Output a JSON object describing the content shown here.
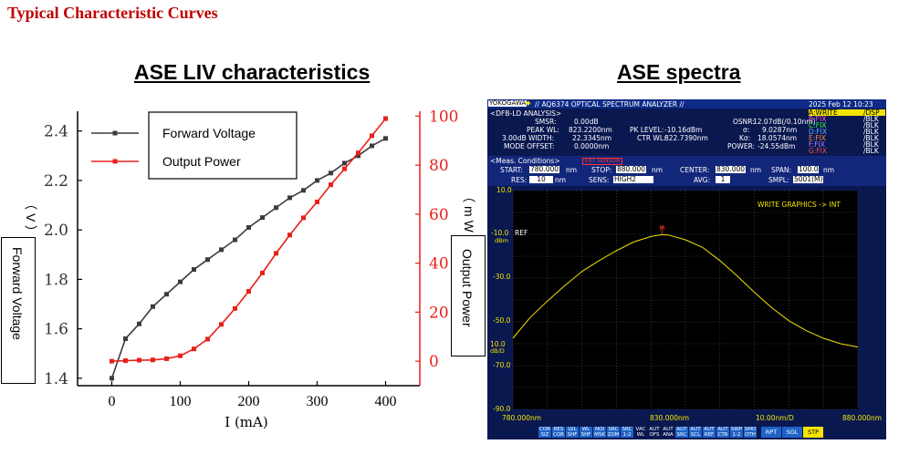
{
  "heading": "Typical Characteristic Curves",
  "liv": {
    "title": "ASE LIV characteristics",
    "left_axis_label": "Forward Voltage",
    "left_unit": "（V）",
    "right_axis_label": "Output Power",
    "right_unit": "（mW）",
    "xlabel": "I (mA)"
  },
  "chart_data": [
    {
      "type": "line",
      "title": "ASE LIV characteristics",
      "xlabel": "I (mA)",
      "ylabel": "Forward Voltage",
      "y2label": "Output Power",
      "xlim": [
        -50,
        450
      ],
      "ylim": [
        1.37,
        2.48
      ],
      "y2lim": [
        -10,
        102
      ],
      "xticks": [
        0,
        100,
        200,
        300,
        400
      ],
      "xtick_labels": [
        "0",
        "100",
        "200",
        "300",
        "400"
      ],
      "yticks": [
        1.4,
        1.6,
        1.8,
        2.0,
        2.2,
        2.4
      ],
      "ytick_labels": [
        "1.4",
        "1.6",
        "1.8",
        "2.0",
        "2.2",
        "2.4"
      ],
      "y2ticks": [
        0,
        20,
        40,
        60,
        80,
        100
      ],
      "y2tick_labels": [
        "0",
        "20",
        "40",
        "60",
        "80",
        "100"
      ],
      "legend_position": "top-left",
      "series": [
        {
          "name": "Forward Voltage",
          "axis": "left",
          "color": "#3c3c3c",
          "x": [
            0,
            20,
            40,
            60,
            80,
            100,
            120,
            140,
            160,
            180,
            200,
            220,
            240,
            260,
            280,
            300,
            320,
            340,
            360,
            380,
            400
          ],
          "y": [
            1.4,
            1.56,
            1.62,
            1.69,
            1.74,
            1.79,
            1.84,
            1.88,
            1.92,
            1.96,
            2.01,
            2.05,
            2.09,
            2.13,
            2.16,
            2.2,
            2.23,
            2.27,
            2.3,
            2.34,
            2.37
          ]
        },
        {
          "name": "Output Power",
          "axis": "right",
          "color": "#e8201a",
          "x": [
            0,
            20,
            40,
            60,
            80,
            100,
            120,
            140,
            160,
            180,
            200,
            220,
            240,
            260,
            280,
            300,
            320,
            340,
            360,
            380,
            400
          ],
          "y": [
            0,
            0.2,
            0.4,
            0.5,
            1.0,
            2.2,
            5.0,
            9.0,
            15.0,
            21.5,
            28.5,
            36.0,
            44.0,
            51.5,
            58.5,
            65.0,
            72.0,
            78.5,
            85.0,
            92.0,
            99.0
          ]
        }
      ]
    },
    {
      "type": "line",
      "title": "ASE spectra",
      "xlabel": "nm",
      "ylabel": "dBm",
      "xlim": [
        780.0,
        880.0
      ],
      "ylim": [
        -90.0,
        10.0
      ],
      "grid": true,
      "color": "#f2e400",
      "series": [
        {
          "x": [
            780,
            785,
            790,
            795,
            800,
            805,
            810,
            815,
            820,
            823.22,
            825,
            830,
            835,
            840,
            845,
            850,
            855,
            860,
            865,
            870,
            875,
            880
          ],
          "y": [
            -57.5,
            -48,
            -40.5,
            -33.5,
            -27,
            -22,
            -17.5,
            -13.5,
            -11,
            -10.16,
            -10.3,
            -12.5,
            -16,
            -22,
            -29,
            -36.5,
            -43.5,
            -49.5,
            -54,
            -57.5,
            -60,
            -61.5
          ]
        }
      ]
    }
  ],
  "osa": {
    "brand": "YOKOGAWA",
    "header_title": "// AQ6374 OPTICAL SPECTRUM ANALYZER //",
    "datetime": "2025 Feb 12 10:23",
    "analysis_label": "<DFB-LD ANALYSIS>",
    "smsr_label": "SMSR:",
    "smsr_value": "0.00dB",
    "peak_wl_label": "PEAK WL:",
    "peak_wl_value": "823.2200nm",
    "width_label": "3.00dB WIDTH:",
    "width_value": "22.3345nm",
    "mode_offset_label": "MODE OFFSET:",
    "mode_offset_value": "0.0000nm",
    "pk_level_label": "PK LEVEL:",
    "pk_level_value": "-10.16dBm",
    "ctr_wl_label": "CTR WL:",
    "ctr_wl_value": "822.7390nm",
    "osnr_label": "OSNR:",
    "osnr_value": "12.07dB(/0.10nm)",
    "sigma_label": "σ:",
    "sigma_value": "9.0287nm",
    "ksigma_label": "Kσ:",
    "ksigma_value": "18.0574nm",
    "power_label": "POWER:",
    "power_value": "-24.55dBm",
    "traces": [
      {
        "name": "A:WRITE",
        "mode": "/DSP"
      },
      {
        "name": "B:FIX",
        "mode": "/BLK"
      },
      {
        "name": "C:FIX",
        "mode": "/BLK"
      },
      {
        "name": "D:FIX",
        "mode": "/BLK"
      },
      {
        "name": "E:FIX",
        "mode": "/BLK"
      },
      {
        "name": "F:FIX",
        "mode": "/BLK"
      },
      {
        "name": "G:FIX",
        "mode": "/BLK"
      }
    ],
    "meas_conditions_label": "<Meas. Conditions>",
    "meas_badge": "EXT SENSOR",
    "start_label": "START:",
    "start_value": "780.000",
    "start_unit": "nm",
    "stop_label": "STOP:",
    "stop_value": "880.000",
    "stop_unit": "nm",
    "center_label": "CENTER:",
    "center_value": "830.000",
    "center_unit": "nm",
    "span_label": "SPAN:",
    "span_value": "100.0",
    "span_unit": "nm",
    "res_label": "RES:",
    "res_value": "10",
    "res_unit": "nm",
    "sens_label": "SENS:",
    "sens_value": "HIGH2",
    "avg_label": "AVG:",
    "avg_value": "1",
    "smpl_label": "SMPL:",
    "smpl_value": "5001(M)",
    "write_graphics": "WRITE GRAPHICS -> INT",
    "y_top": "10.0",
    "y_ref": "-10.0",
    "ref_tag": "REF",
    "dbm_unit": "dBm",
    "y_30": "-30.0",
    "y_50": "-50.0",
    "scale_value": "10.0",
    "scale_unit": "dB/D",
    "y_70": "-70.0",
    "y_bottom": "-90.0",
    "x_start": "780.000nm",
    "x_center": "830.000nm",
    "x_div": "10.00nm/D",
    "x_stop": "880.000nm",
    "peak_marker": "M",
    "func_keys": [
      "COR SIZ",
      "RES COR",
      "LVL SHF",
      "WL SHF",
      "NOI MSK",
      "SRC ZOM",
      "SRC 1-2",
      "VAC WL",
      "AUT OFS",
      "AUT ANA",
      "AUT SRC",
      "AUT SCL",
      "AUT REF",
      "AUT CTR",
      "SWP 1-2",
      "SMO OTH",
      "RPT",
      "SGL",
      "STP"
    ]
  }
}
